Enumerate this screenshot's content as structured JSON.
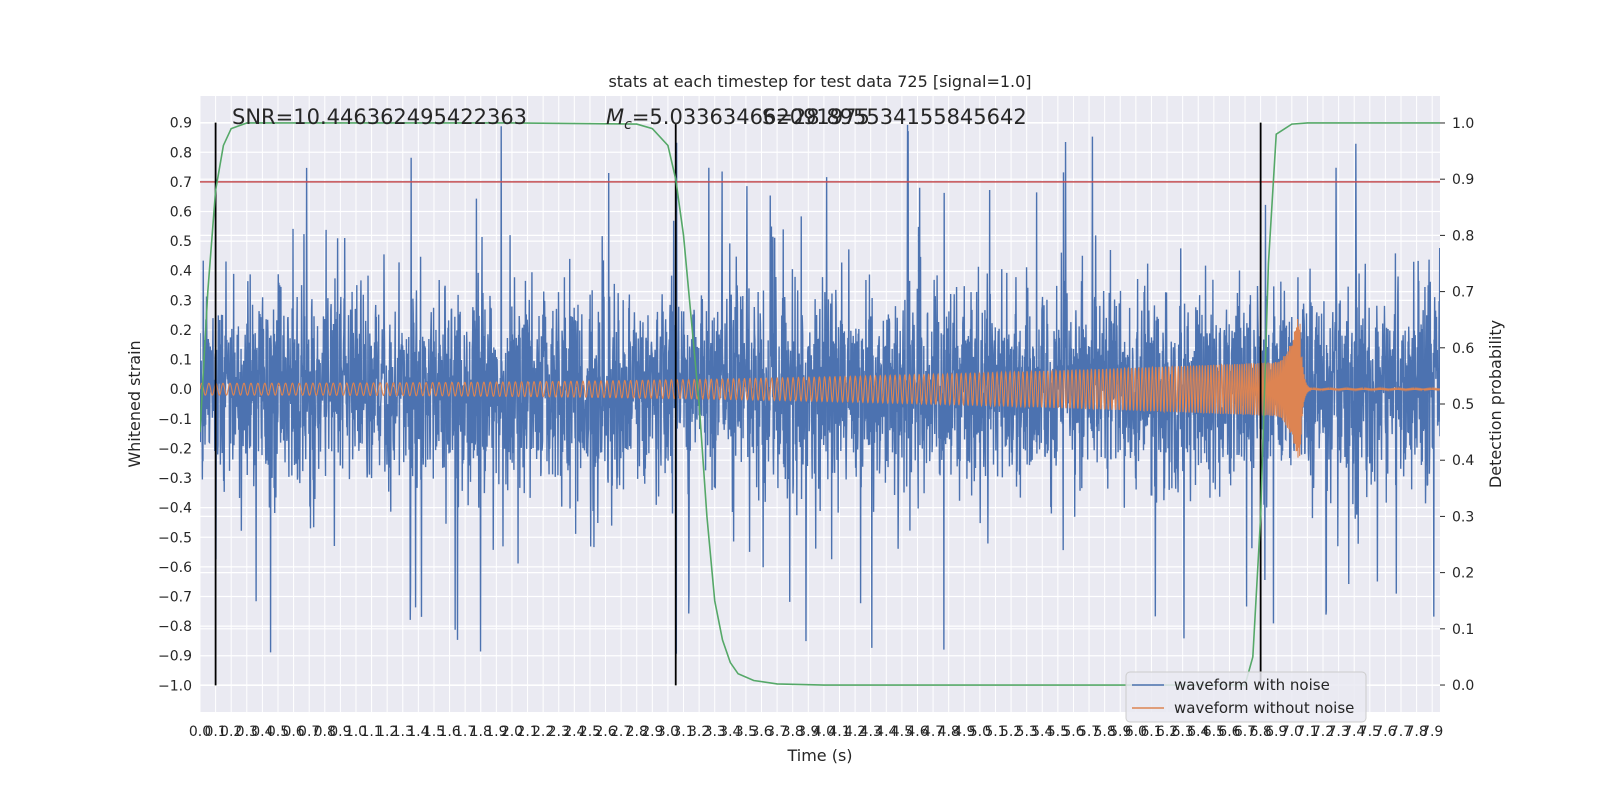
{
  "chart_data": {
    "type": "line",
    "title": "stats at each timestep for test data 725 [signal=1.0]",
    "xlabel": "Time (s)",
    "ylabel": "Whitened strain",
    "ylabel_right": "Detection probability",
    "xlim": [
      0.0,
      7.95
    ],
    "ylim": [
      -1.09,
      0.99
    ],
    "ylim_right": [
      -0.048,
      1.048
    ],
    "grid": true,
    "background": "#eaeaf2",
    "x_ticks": [
      "0.0",
      "0.1",
      "0.2",
      "0.3",
      "0.4",
      "0.5",
      "0.6",
      "0.7",
      "0.8",
      "0.9",
      "1.0",
      "1.1",
      "1.2",
      "1.3",
      "1.4",
      "1.5",
      "1.6",
      "1.7",
      "1.8",
      "1.9",
      "2.0",
      "2.1",
      "2.2",
      "2.3",
      "2.4",
      "2.5",
      "2.6",
      "2.7",
      "2.8",
      "2.9",
      "3.0",
      "3.1",
      "3.2",
      "3.3",
      "3.4",
      "3.5",
      "3.6",
      "3.7",
      "3.8",
      "3.9",
      "4.0",
      "4.1",
      "4.2",
      "4.3",
      "4.4",
      "4.5",
      "4.6",
      "4.7",
      "4.8",
      "4.9",
      "5.0",
      "5.1",
      "5.2",
      "5.3",
      "5.4",
      "5.5",
      "5.6",
      "5.7",
      "5.8",
      "5.9",
      "6.0",
      "6.1",
      "6.2",
      "6.3",
      "6.4",
      "6.5",
      "6.6",
      "6.7",
      "6.8",
      "6.9",
      "7.0",
      "7.1",
      "7.2",
      "7.3",
      "7.4",
      "7.5",
      "7.6",
      "7.7",
      "7.8",
      "7.9"
    ],
    "y_ticks": [
      "0.9",
      "0.8",
      "0.7",
      "0.6",
      "0.5",
      "0.4",
      "0.3",
      "0.2",
      "0.1",
      "0.0",
      "−0.1",
      "−0.2",
      "−0.3",
      "−0.4",
      "−0.5",
      "−0.6",
      "−0.7",
      "−0.8",
      "−0.9",
      "−1.0"
    ],
    "y_ticks_right": [
      "1.0",
      "0.9",
      "0.8",
      "0.7",
      "0.6",
      "0.5",
      "0.4",
      "0.3",
      "0.2",
      "0.1",
      "0.0"
    ],
    "annotations": {
      "snr": "SNR=10.446362495422363",
      "mc_symbol": "M",
      "mc_sub": "c",
      "mc_value": "=5.033634662091975",
      "overlap": "S=28.895534155845642"
    },
    "series": [
      {
        "name": "waveform with noise",
        "color": "#4c72b0",
        "kind": "noise",
        "envelope": 0.3,
        "peak_range": [
          0.5,
          0.9
        ]
      },
      {
        "name": "waveform without noise",
        "color": "#dd8452",
        "kind": "chirp",
        "amplitude_start": 0.02,
        "amplitude_peak": 0.27,
        "merger_time": 7.05,
        "ringdown_end": 7.12
      },
      {
        "name": "detection probability",
        "color": "#55a868",
        "axis": "right",
        "points": [
          [
            0.0,
            0.45
          ],
          [
            0.05,
            0.7
          ],
          [
            0.1,
            0.88
          ],
          [
            0.15,
            0.96
          ],
          [
            0.2,
            0.99
          ],
          [
            0.3,
            1.0
          ],
          [
            1.0,
            1.0
          ],
          [
            2.0,
            1.0
          ],
          [
            2.8,
            0.998
          ],
          [
            2.9,
            0.99
          ],
          [
            3.0,
            0.96
          ],
          [
            3.05,
            0.9
          ],
          [
            3.1,
            0.8
          ],
          [
            3.15,
            0.65
          ],
          [
            3.2,
            0.5
          ],
          [
            3.25,
            0.3
          ],
          [
            3.3,
            0.15
          ],
          [
            3.35,
            0.08
          ],
          [
            3.4,
            0.04
          ],
          [
            3.45,
            0.02
          ],
          [
            3.55,
            0.008
          ],
          [
            3.7,
            0.002
          ],
          [
            4.0,
            0.0
          ],
          [
            6.7,
            0.0
          ],
          [
            6.75,
            0.05
          ],
          [
            6.8,
            0.3
          ],
          [
            6.85,
            0.75
          ],
          [
            6.9,
            0.98
          ],
          [
            7.0,
            0.998
          ],
          [
            7.1,
            1.0
          ],
          [
            7.95,
            1.0
          ]
        ]
      }
    ],
    "threshold": {
      "value": 0.7,
      "color": "#c44e52"
    },
    "vertical_lines": [
      0.1,
      3.05,
      6.8
    ],
    "vertical_line_range": [
      -1.0,
      0.9
    ]
  },
  "legend": {
    "items": [
      {
        "label": "waveform with noise",
        "color": "#4c72b0"
      },
      {
        "label": "waveform without noise",
        "color": "#dd8452"
      }
    ],
    "position": "lower right"
  }
}
